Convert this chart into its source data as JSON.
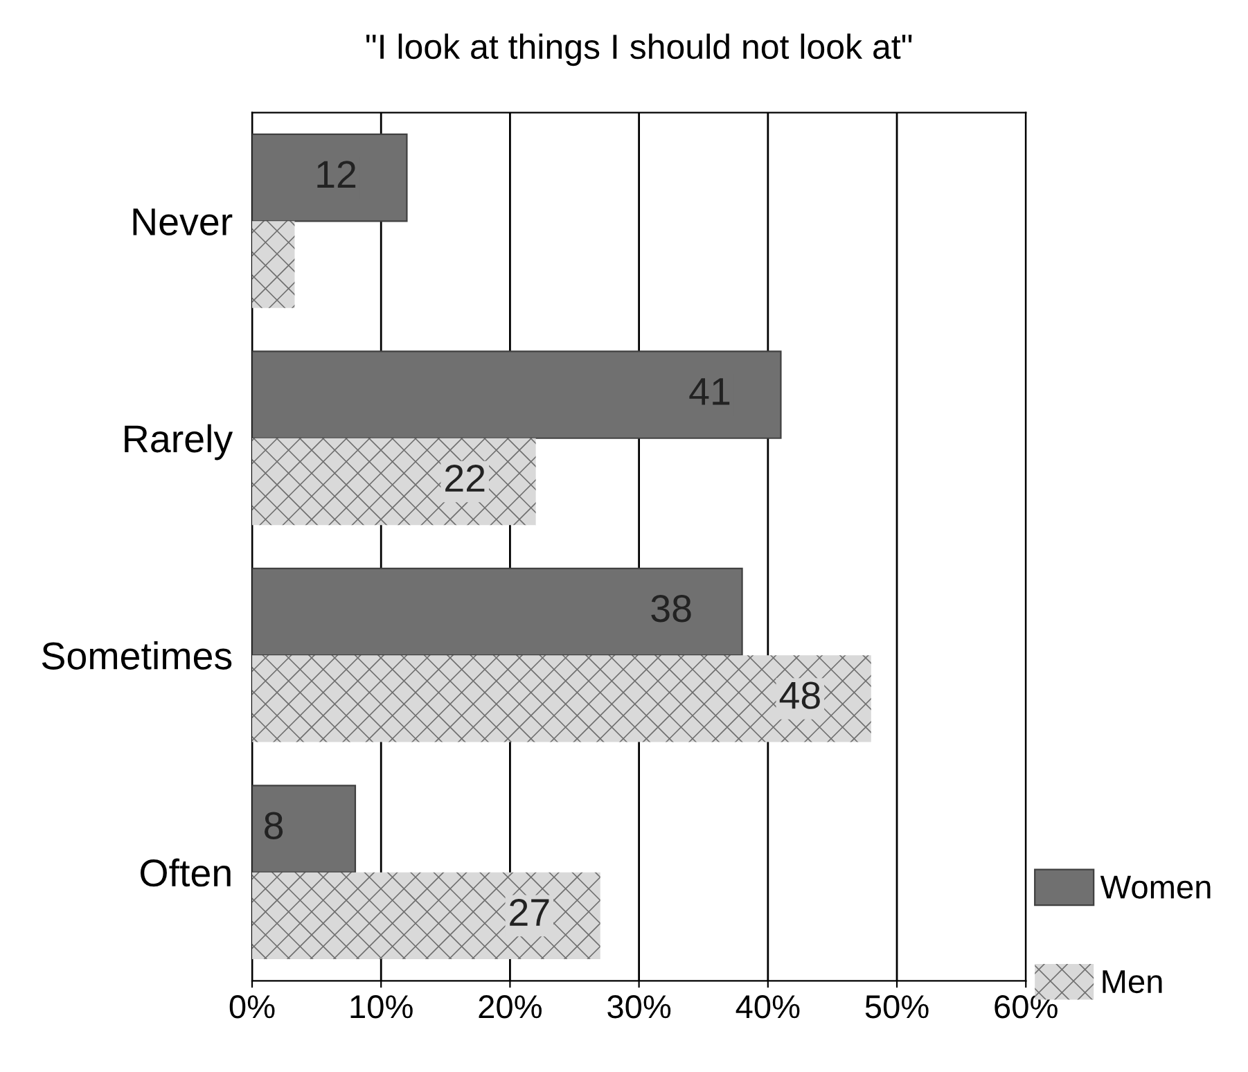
{
  "chart_data": {
    "type": "bar",
    "orientation": "horizontal",
    "title": "\"I look at things I should not look at\"",
    "categories": [
      "Never",
      "Rarely",
      "Sometimes",
      "Often"
    ],
    "series": [
      {
        "name": "Women",
        "color": "#707070",
        "values": [
          12,
          41,
          38,
          8
        ],
        "value_labels": [
          "12",
          "41",
          "38",
          "8"
        ]
      },
      {
        "name": "Men",
        "color": "#d9d9d9",
        "values": [
          3.3,
          22,
          48,
          27
        ],
        "value_labels": [
          null,
          "22",
          "48",
          "27"
        ]
      }
    ],
    "xlim": [
      0,
      60
    ],
    "xticks": [
      {
        "value": 0,
        "label": "0%"
      },
      {
        "value": 10,
        "label": "10%"
      },
      {
        "value": 20,
        "label": "20%"
      },
      {
        "value": 30,
        "label": "30%"
      },
      {
        "value": 40,
        "label": "40%"
      },
      {
        "value": 50,
        "label": "50%"
      },
      {
        "value": 60,
        "label": "60%"
      }
    ],
    "grid": "x",
    "legend": "bottom right"
  }
}
